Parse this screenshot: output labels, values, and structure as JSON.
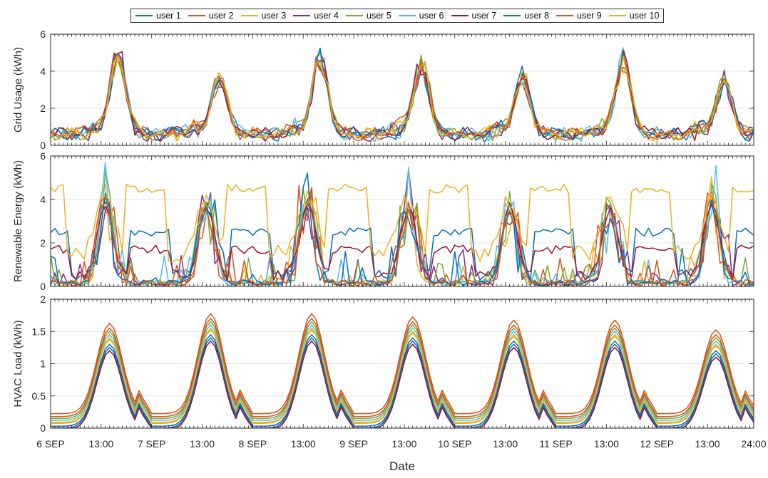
{
  "chart_data": {
    "type": "line",
    "xlabel": "Date",
    "x_tick_labels": [
      "6 SEP",
      "13:00",
      "7 SEP",
      "13:00",
      "8 SEP",
      "13:00",
      "9 SEP",
      "13:00",
      "10 SEP",
      "13:00",
      "11 SEP",
      "13:00",
      "12 SEP",
      "13:00",
      "24:00"
    ],
    "x_range_hours": [
      0,
      167
    ],
    "legend": [
      "user 1",
      "user 2",
      "user 3",
      "user 4",
      "user 5",
      "user 6",
      "user 7",
      "user 8",
      "user 9",
      "user 10"
    ],
    "legend_placement": "top-center",
    "colors": [
      "#0072BD",
      "#D95319",
      "#EDB120",
      "#7E2F8E",
      "#77AC30",
      "#4DBEEE",
      "#A2142F",
      "#0072BD",
      "#D95319",
      "#EDB120"
    ],
    "panels": [
      {
        "ylabel": "Grid Usage (kWh)",
        "ylim": [
          0,
          6
        ],
        "yticks": [
          0,
          2,
          4,
          6
        ],
        "grid": true,
        "description_series": "daily profile approximations",
        "daily_peaks": [
          4.8,
          3.6,
          4.6,
          4.3,
          3.6,
          4.4,
          3.3
        ],
        "overnight_base": 0.6
      },
      {
        "ylabel": "Renewable Energy (kWh)",
        "ylim": [
          0,
          6
        ],
        "yticks": [
          0,
          2,
          4,
          6
        ],
        "grid": true,
        "daily_peaks": [
          4.0,
          4.0,
          4.2,
          3.8,
          3.3,
          3.6,
          4.0
        ],
        "plateau_user10": 4.5
      },
      {
        "ylabel": "HVAC Load (kWh)",
        "ylim": [
          0,
          2
        ],
        "yticks": [
          0,
          0.5,
          1,
          1.5,
          2
        ],
        "grid": true,
        "daily_peaks": [
          1.45,
          1.6,
          1.6,
          1.55,
          1.5,
          1.5,
          1.35
        ],
        "overnight_base": 0.3
      }
    ]
  }
}
